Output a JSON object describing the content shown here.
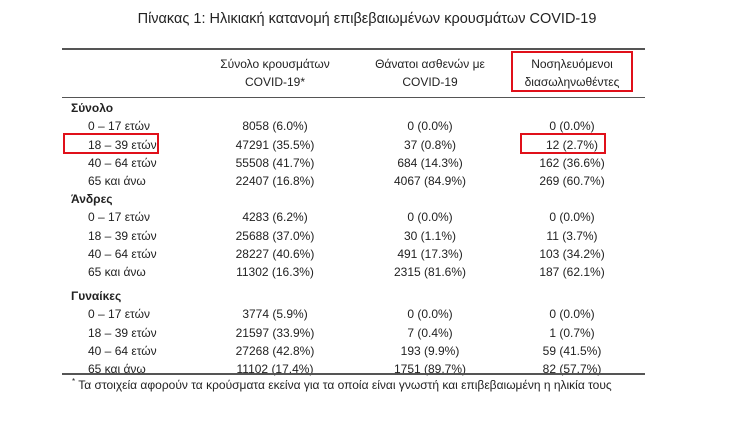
{
  "title": "Πίνακας 1: Ηλικιακή κατανομή επιβεβαιωμένων κρουσμάτων COVID-19",
  "headers": [
    {
      "line1": "Σύνολο κρουσμάτων",
      "line2": "COVID-19*"
    },
    {
      "line1": "Θάνατοι ασθενών με",
      "line2": "COVID-19"
    },
    {
      "line1": "Νοσηλευόμενοι",
      "line2": "διασωληνωθέντες"
    }
  ],
  "sections": [
    {
      "name": "Σύνολο",
      "rows": [
        [
          "0 – 17 ετών",
          "8058 (6.0%)",
          "0 (0.0%)",
          "0 (0.0%)"
        ],
        [
          "18 – 39 ετών",
          "47291 (35.5%)",
          "37 (0.8%)",
          "12 (2.7%)"
        ],
        [
          "40 – 64 ετών",
          "55508 (41.7%)",
          "684 (14.3%)",
          "162 (36.6%)"
        ],
        [
          "65 και άνω",
          "22407 (16.8%)",
          "4067 (84.9%)",
          "269 (60.7%)"
        ]
      ]
    },
    {
      "name": "Άνδρες",
      "rows": [
        [
          "0 – 17 ετών",
          "4283 (6.2%)",
          "0 (0.0%)",
          "0 (0.0%)"
        ],
        [
          "18 – 39 ετών",
          "25688 (37.0%)",
          "30 (1.1%)",
          "11 (3.7%)"
        ],
        [
          "40 – 64 ετών",
          "28227 (40.6%)",
          "491 (17.3%)",
          "103 (34.2%)"
        ],
        [
          "65 και άνω",
          "11302 (16.3%)",
          "2315 (81.6%)",
          "187 (62.1%)"
        ]
      ]
    },
    {
      "name": "Γυναίκες",
      "rows": [
        [
          "0 – 17 ετών",
          "3774 (5.9%)",
          "0 (0.0%)",
          "0 (0.0%)"
        ],
        [
          "18 – 39 ετών",
          "21597 (33.9%)",
          "7 (0.4%)",
          "1 (0.7%)"
        ],
        [
          "40 – 64 ετών",
          "27268 (42.8%)",
          "193 (9.9%)",
          "59 (41.5%)"
        ],
        [
          "65 και άνω",
          "11102 (17.4%)",
          "1751 (89.7%)",
          "82 (57.7%)"
        ]
      ]
    }
  ],
  "footnote": {
    "mark": "*",
    "text": "Τα στοιχεία αφορούν τα κρούσματα εκείνα για τα οποία είναι γνωστή και επιβεβαιωμένη η ηλικία τους"
  },
  "highlight_color": "#e0101a"
}
